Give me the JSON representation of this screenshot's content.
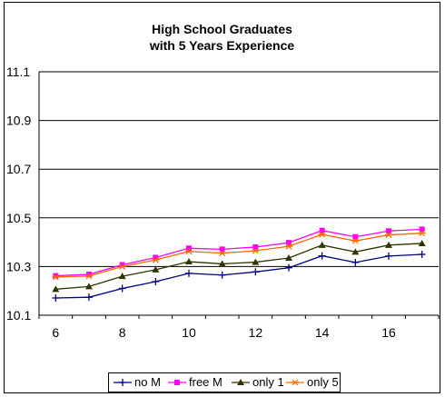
{
  "chart_data": {
    "type": "line",
    "title_lines": [
      "High School Graduates",
      "with 5 Years Experience"
    ],
    "xlabel": "",
    "ylabel": "",
    "x": [
      6,
      7,
      8,
      9,
      10,
      11,
      12,
      13,
      14,
      15,
      16,
      17
    ],
    "x_ticks": [
      "6",
      "8",
      "10",
      "12",
      "14",
      "16"
    ],
    "y_ticks": [
      "10.1",
      "10.3",
      "10.5",
      "10.7",
      "10.9",
      "11.1"
    ],
    "ylim": [
      10.1,
      11.1
    ],
    "grid": "horizontal",
    "legend_position": "bottom",
    "series": [
      {
        "name": "no M",
        "color": "#000080",
        "marker": "plus",
        "values": [
          10.171,
          10.174,
          10.21,
          10.238,
          10.272,
          10.265,
          10.278,
          10.295,
          10.344,
          10.317,
          10.343,
          10.35
        ]
      },
      {
        "name": "free M",
        "color": "#ff00ff",
        "marker": "square",
        "values": [
          10.262,
          10.268,
          10.307,
          10.337,
          10.375,
          10.371,
          10.38,
          10.398,
          10.448,
          10.422,
          10.446,
          10.453
        ]
      },
      {
        "name": "only 1",
        "color": "#333300",
        "marker": "triangle",
        "values": [
          10.207,
          10.218,
          10.26,
          10.287,
          10.32,
          10.311,
          10.318,
          10.335,
          10.388,
          10.36,
          10.388,
          10.395
        ]
      },
      {
        "name": "only 5",
        "color": "#ff6600",
        "marker": "star",
        "values": [
          10.257,
          10.261,
          10.3,
          10.327,
          10.362,
          10.355,
          10.365,
          10.383,
          10.432,
          10.405,
          10.43,
          10.437
        ]
      }
    ]
  }
}
